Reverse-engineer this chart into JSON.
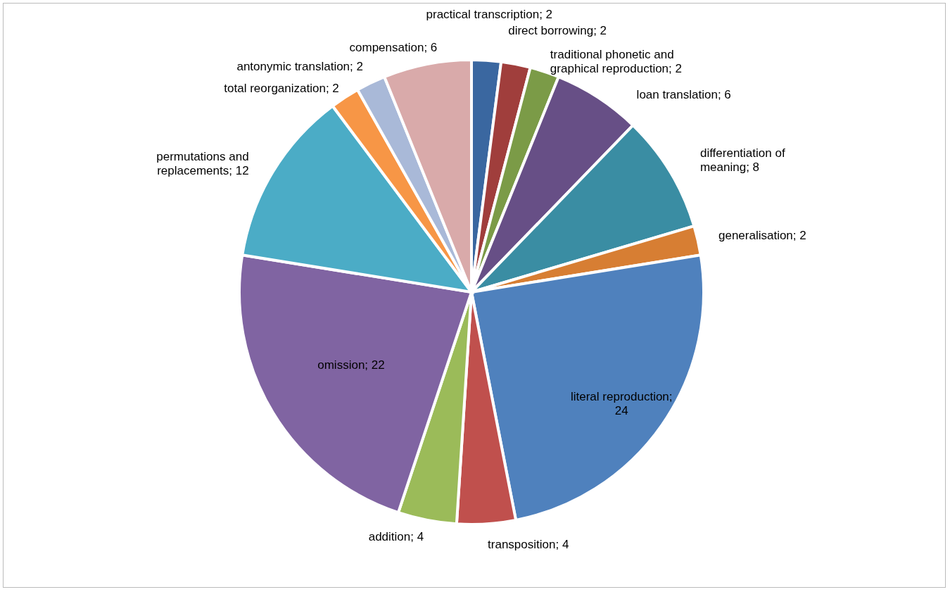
{
  "chart_data": {
    "type": "pie",
    "categories": [
      "practical transcription; 2",
      "direct borrowing; 2",
      "traditional phonetic and graphical reproduction; 2",
      "loan translation; 6",
      "differentiation of meaning; 8",
      "generalisation; 2",
      "literal reproduction; 24",
      "transposition; 4",
      "addition; 4",
      "omission; 22",
      "permutations and replacements; 12",
      "total reorganization; 2",
      "antonymic translation; 2",
      "compensation; 6"
    ],
    "values": [
      2,
      2,
      2,
      6,
      8,
      2,
      24,
      4,
      4,
      22,
      12,
      2,
      2,
      6
    ],
    "colors": [
      "#3a67a0",
      "#a03e3c",
      "#7b9b47",
      "#674f86",
      "#3a8da3",
      "#d77e33",
      "#4f81bd",
      "#c0504d",
      "#9bbb59",
      "#8064a2",
      "#4bacc6",
      "#f79646",
      "#a9b9d8",
      "#d9aaaa"
    ]
  }
}
